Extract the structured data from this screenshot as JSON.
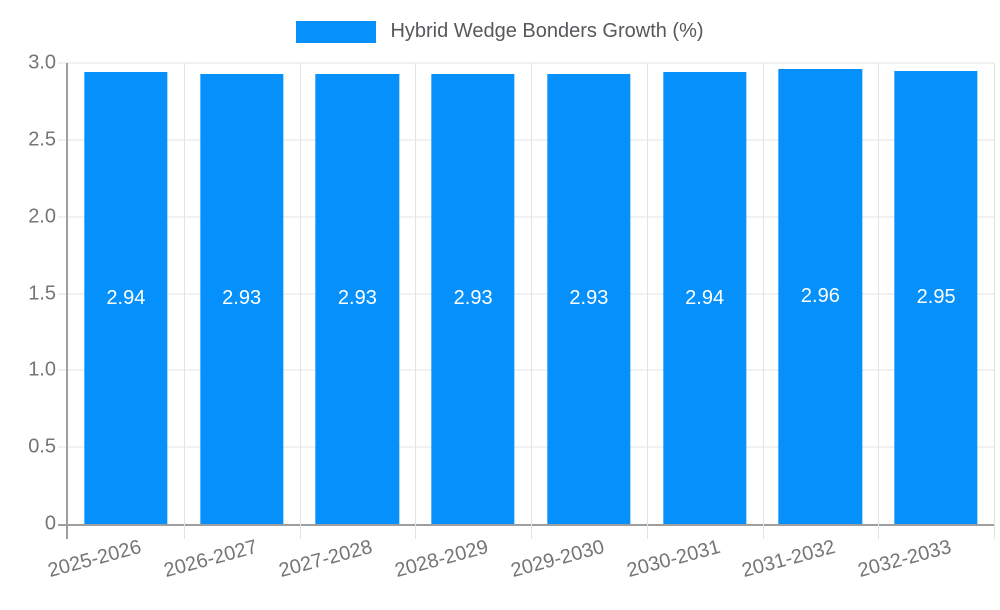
{
  "chart_data": {
    "type": "bar",
    "title": "",
    "xlabel": "",
    "ylabel": "",
    "legend": "Hybrid Wedge Bonders Growth (%)",
    "legend_position": "top-center",
    "grid": true,
    "xtick_rotation_deg": -15,
    "ylim": [
      0,
      3
    ],
    "yticks": [
      {
        "label": "0",
        "value": 0
      },
      {
        "label": "0.5",
        "value": 0.5
      },
      {
        "label": "1.0",
        "value": 1
      },
      {
        "label": "1.5",
        "value": 1.5
      },
      {
        "label": "2.0",
        "value": 2
      },
      {
        "label": "2.5",
        "value": 2.5
      },
      {
        "label": "3.0",
        "value": 3
      }
    ],
    "categories": [
      "2025-2026",
      "2026-2027",
      "2027-2028",
      "2028-2029",
      "2029-2030",
      "2030-2031",
      "2031-2032",
      "2032-2033"
    ],
    "series": [
      {
        "name": "Hybrid Wedge Bonders Growth (%)",
        "values": [
          2.94,
          2.93,
          2.93,
          2.93,
          2.93,
          2.94,
          2.96,
          2.95
        ],
        "value_labels": [
          "2.94",
          "2.93",
          "2.93",
          "2.93",
          "2.93",
          "2.94",
          "2.96",
          "2.95"
        ]
      }
    ],
    "colors": {
      "bar": "#0590fb",
      "grid": "#e3e3e3",
      "axis": "#9e9e9e",
      "tick_label": "#757575",
      "legend_text": "#57585c",
      "value_label": "#ffffff",
      "background": "#ffffff"
    }
  }
}
